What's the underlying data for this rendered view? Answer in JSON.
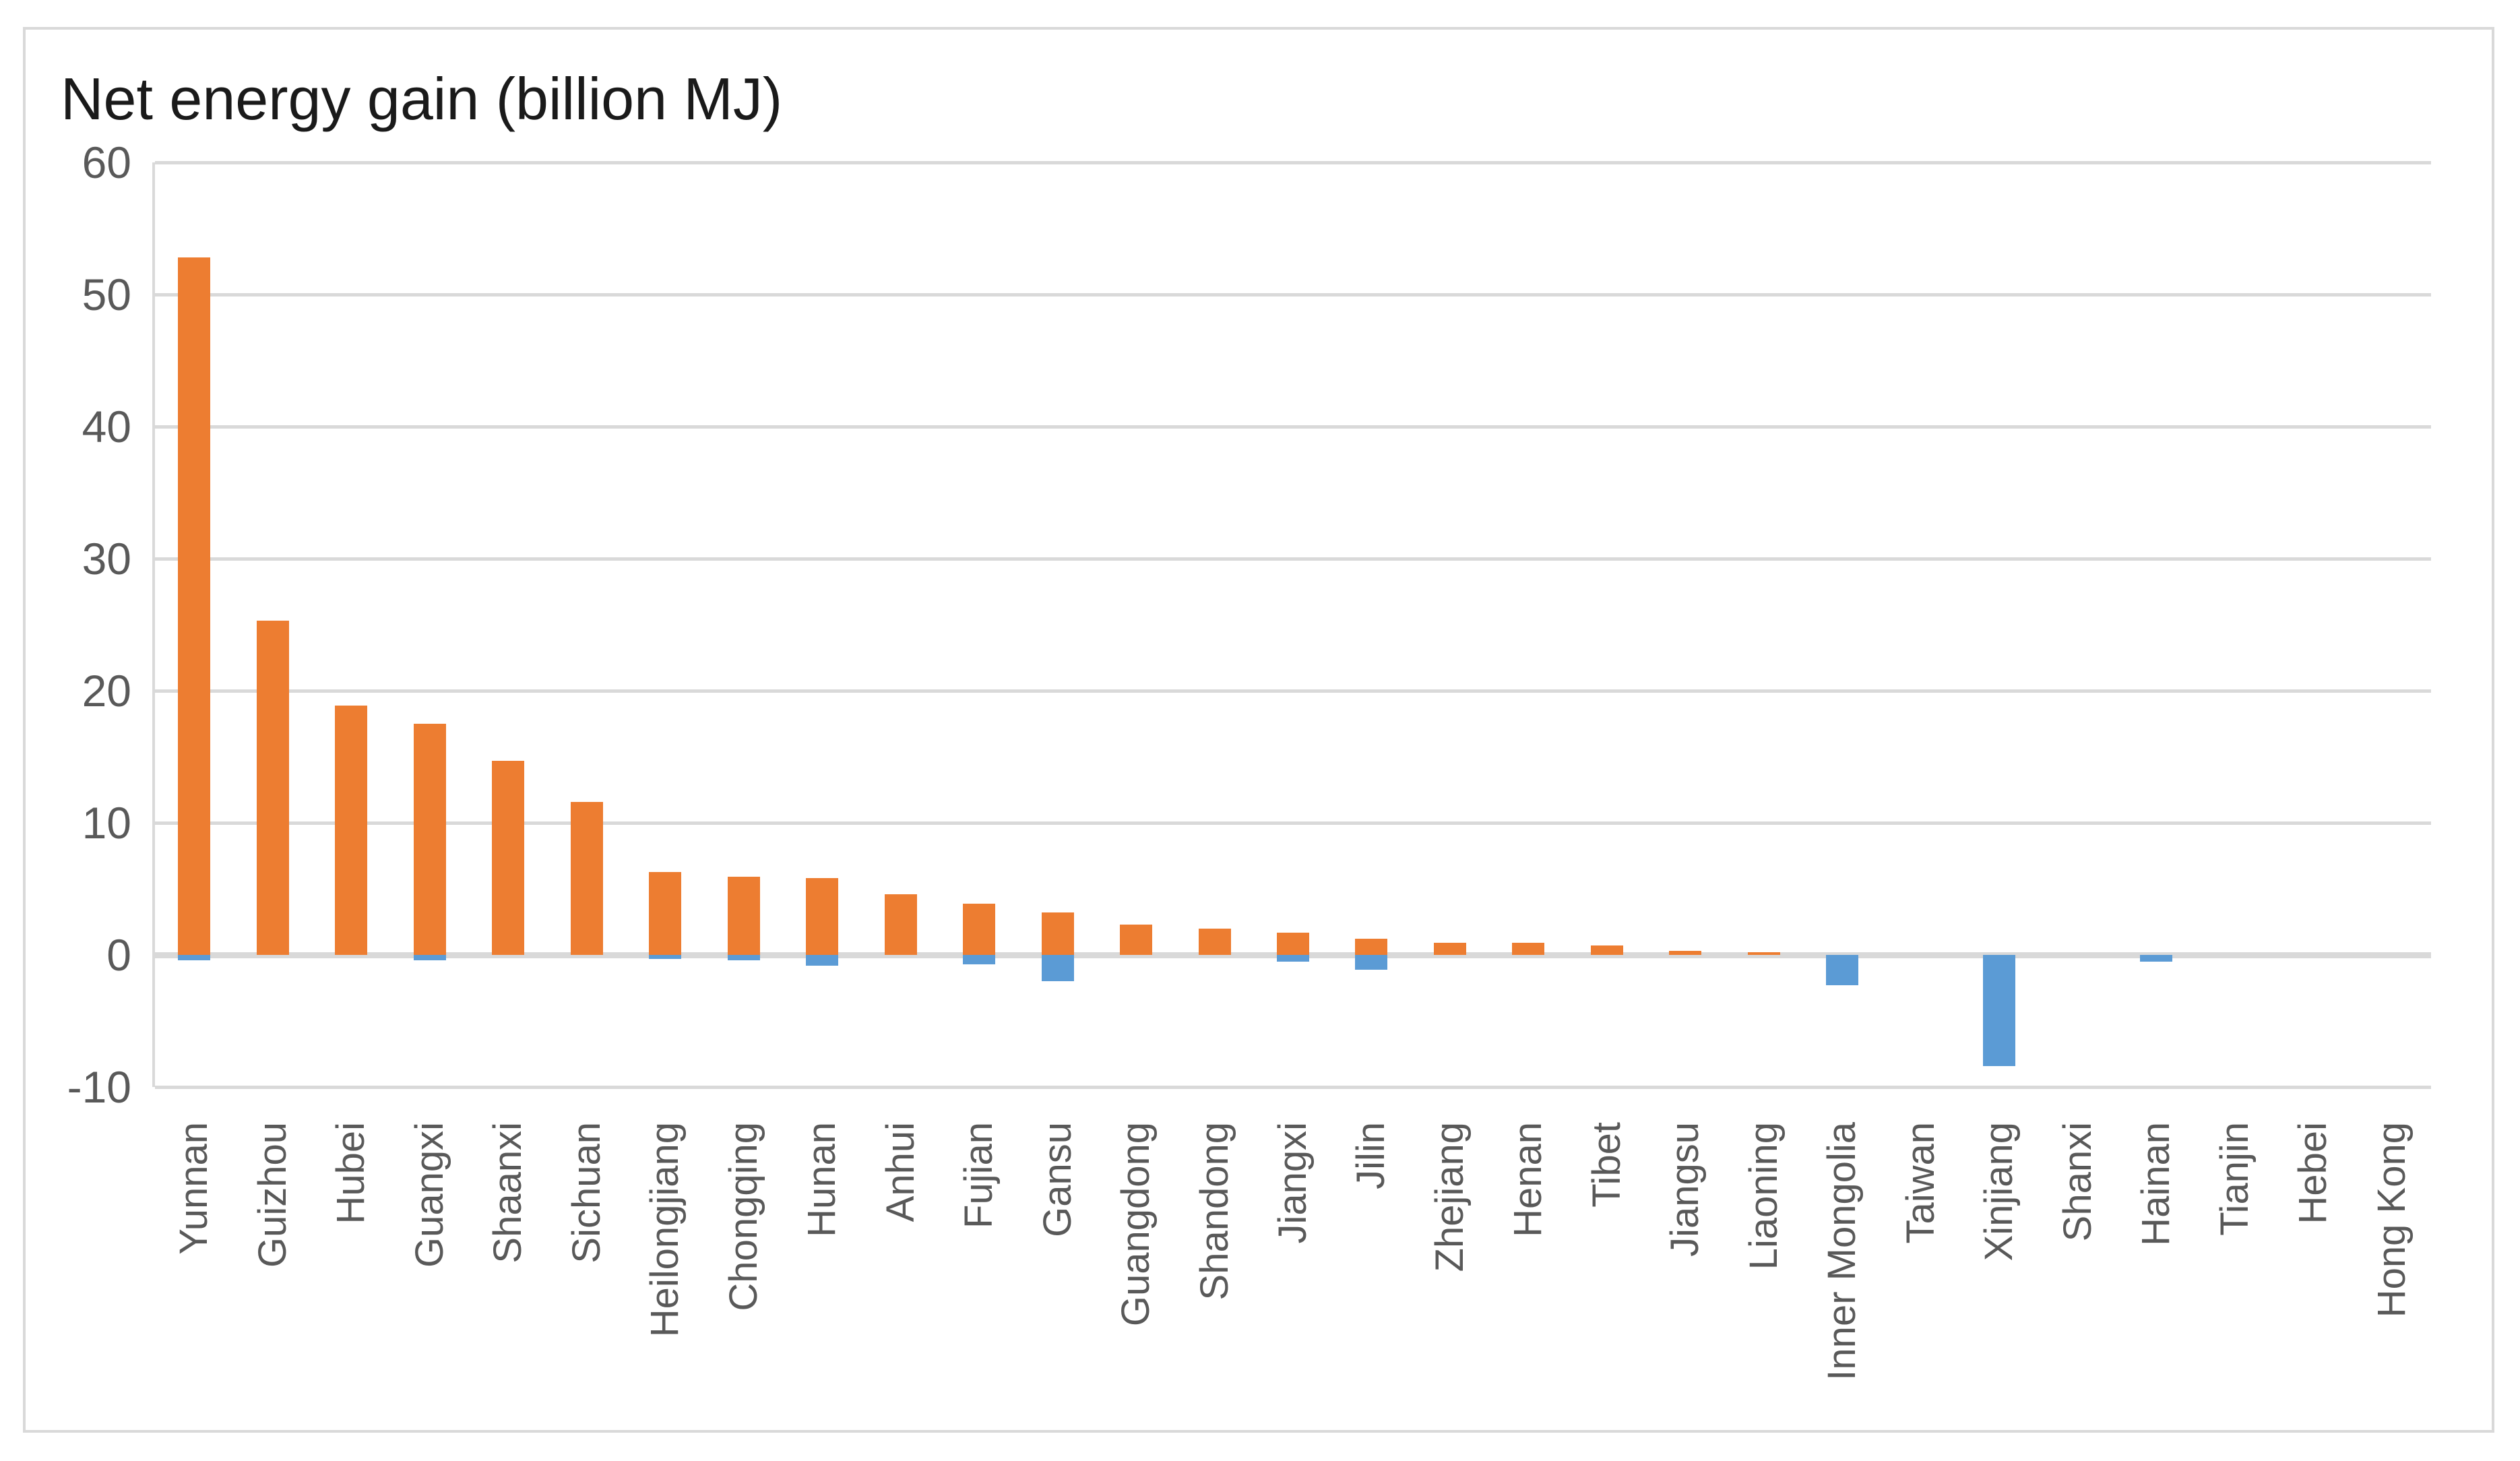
{
  "title": "Net energy gain (billion MJ)",
  "chart_data": {
    "type": "bar",
    "stacked": true,
    "title": "Net energy gain (billion MJ)",
    "xlabel": "",
    "ylabel": "Net energy gain (billion MJ)",
    "categories": [
      "Yunnan",
      "Guizhou",
      "Hubei",
      "Guangxi",
      "Shaanxi",
      "Sichuan",
      "Heilongjiang",
      "Chongqing",
      "Hunan",
      "Anhui",
      "Fujian",
      "Gansu",
      "Guangdong",
      "Shandong",
      "Jiangxi",
      "Jilin",
      "Zhejiang",
      "Henan",
      "Tibet",
      "Jiangsu",
      "Liaoning",
      "Inner Mongolia",
      "Taiwan",
      "Xinjiang",
      "Shanxi",
      "Hainan",
      "Tianjin",
      "Hebei",
      "Hong Kong"
    ],
    "series": [
      {
        "name": "positive-gain",
        "color": "#ED7D31",
        "values": [
          52.8,
          25.3,
          18.9,
          17.5,
          14.7,
          11.6,
          6.3,
          5.9,
          5.8,
          4.6,
          3.9,
          3.2,
          2.3,
          2.0,
          1.7,
          1.2,
          0.9,
          0.9,
          0.7,
          0.3,
          0.2,
          0,
          0,
          0,
          0,
          0,
          0,
          0,
          0
        ]
      },
      {
        "name": "negative-loss",
        "color": "#5B9BD5",
        "values": [
          -0.4,
          0,
          0,
          -0.4,
          0,
          0,
          -0.3,
          -0.4,
          -0.8,
          0,
          -0.7,
          -2.0,
          0,
          0,
          -0.5,
          -1.1,
          0,
          0,
          0,
          0,
          0,
          -2.3,
          0,
          -8.4,
          0,
          -0.5,
          0,
          0,
          0
        ]
      }
    ],
    "ylim": [
      -10,
      60
    ],
    "yticks": [
      60,
      50,
      40,
      30,
      20,
      10,
      0,
      -10
    ],
    "grid": true,
    "gridline_color": "#D9D9D9",
    "axis_label_color": "#595959",
    "legend_position": "none"
  }
}
